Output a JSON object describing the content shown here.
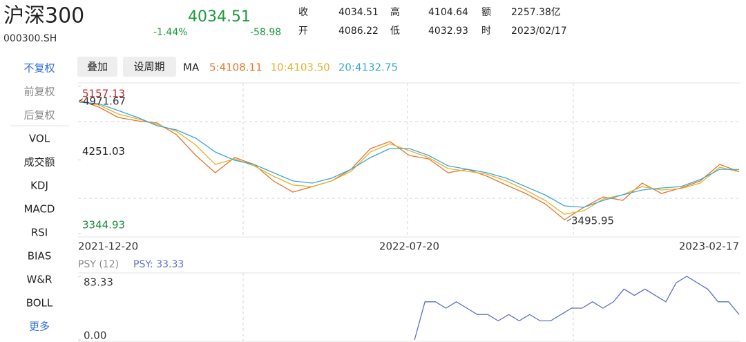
{
  "header": {
    "name": "沪深300",
    "code": "000300.SH",
    "price": "4034.51",
    "change_pct": "-1.44%",
    "change": "-58.98",
    "quote": [
      [
        "收",
        "4034.51",
        "高",
        "4104.64",
        "额",
        "2257.38亿"
      ],
      [
        "开",
        "4086.22",
        "低",
        "4032.93",
        "时",
        "2023/02/17"
      ]
    ]
  },
  "sidebar": [
    "不复权",
    "前复权",
    "后复权",
    "VOL",
    "成交额",
    "KDJ",
    "MACD",
    "RSI",
    "BIAS",
    "W&R",
    "BOLL",
    "更多"
  ],
  "toolbar": {
    "buttons": [
      "叠加",
      "设周期"
    ],
    "ma_label": "MA"
  },
  "chart_data": [
    {
      "type": "line",
      "series": [
        {
          "name": "5:4108.11",
          "color": "#e8742c",
          "values": [
            4987,
            4902,
            4774,
            4732,
            4706,
            4562,
            4306,
            4094,
            4281,
            4196,
            3992,
            3855,
            3923,
            3992,
            4136,
            4391,
            4477,
            4306,
            4264,
            4094,
            4136,
            4051,
            3941,
            3838,
            3711,
            3515,
            3668,
            3796,
            3753,
            3966,
            3838,
            3906,
            3992,
            4196,
            4108.11
          ]
        },
        {
          "name": "10:4103.50",
          "color": "#e3b22a",
          "values": [
            4970,
            4927,
            4817,
            4757,
            4689,
            4604,
            4434,
            4196,
            4264,
            4179,
            4051,
            3941,
            3923,
            3992,
            4111,
            4349,
            4451,
            4366,
            4281,
            4145,
            4111,
            4077,
            3992,
            3881,
            3753,
            3583,
            3626,
            3770,
            3821,
            3923,
            3881,
            3898,
            3966,
            4162,
            4103.5
          ]
        },
        {
          "name": "20:4132.75",
          "color": "#3aa7d6",
          "values": [
            4961,
            4944,
            4859,
            4774,
            4672,
            4621,
            4519,
            4349,
            4247,
            4196,
            4094,
            3992,
            3966,
            4026,
            4136,
            4281,
            4391,
            4391,
            4306,
            4179,
            4136,
            4094,
            4026,
            3923,
            3821,
            3685,
            3668,
            3753,
            3821,
            3881,
            3906,
            3923,
            4009,
            4136,
            4132.75
          ]
        }
      ],
      "ylim": [
        3344.93,
        5157.13
      ],
      "yticks": [
        5157.13,
        4251.03,
        3344.93
      ],
      "annotations": [
        4971.67,
        3495.95
      ],
      "x_labels": [
        "2021-12-20",
        "2022-07-20",
        "2023-02-17"
      ]
    },
    {
      "type": "line",
      "title": "PSY (12)",
      "series": [
        {
          "name": "PSY: 33.33",
          "color": "#5b6fc9",
          "values": [
            null,
            null,
            null,
            null,
            null,
            null,
            null,
            null,
            null,
            null,
            null,
            null,
            null,
            null,
            null,
            null,
            null,
            null,
            null,
            null,
            null,
            null,
            null,
            null,
            null,
            null,
            null,
            null,
            null,
            null,
            null,
            null,
            0,
            50,
            50,
            41.67,
            50,
            41.67,
            33.33,
            33.33,
            25,
            33.33,
            25,
            33.33,
            25,
            25,
            33.33,
            41.67,
            41.67,
            50,
            41.67,
            50,
            66.67,
            58.33,
            66.67,
            58.33,
            50,
            75,
            83.33,
            75,
            66.67,
            50,
            50,
            33.33
          ]
        }
      ],
      "ylim": [
        0,
        83.33
      ],
      "yticks": [
        83.33,
        {
          "value": 0,
          "label": "0.00"
        }
      ]
    }
  ]
}
